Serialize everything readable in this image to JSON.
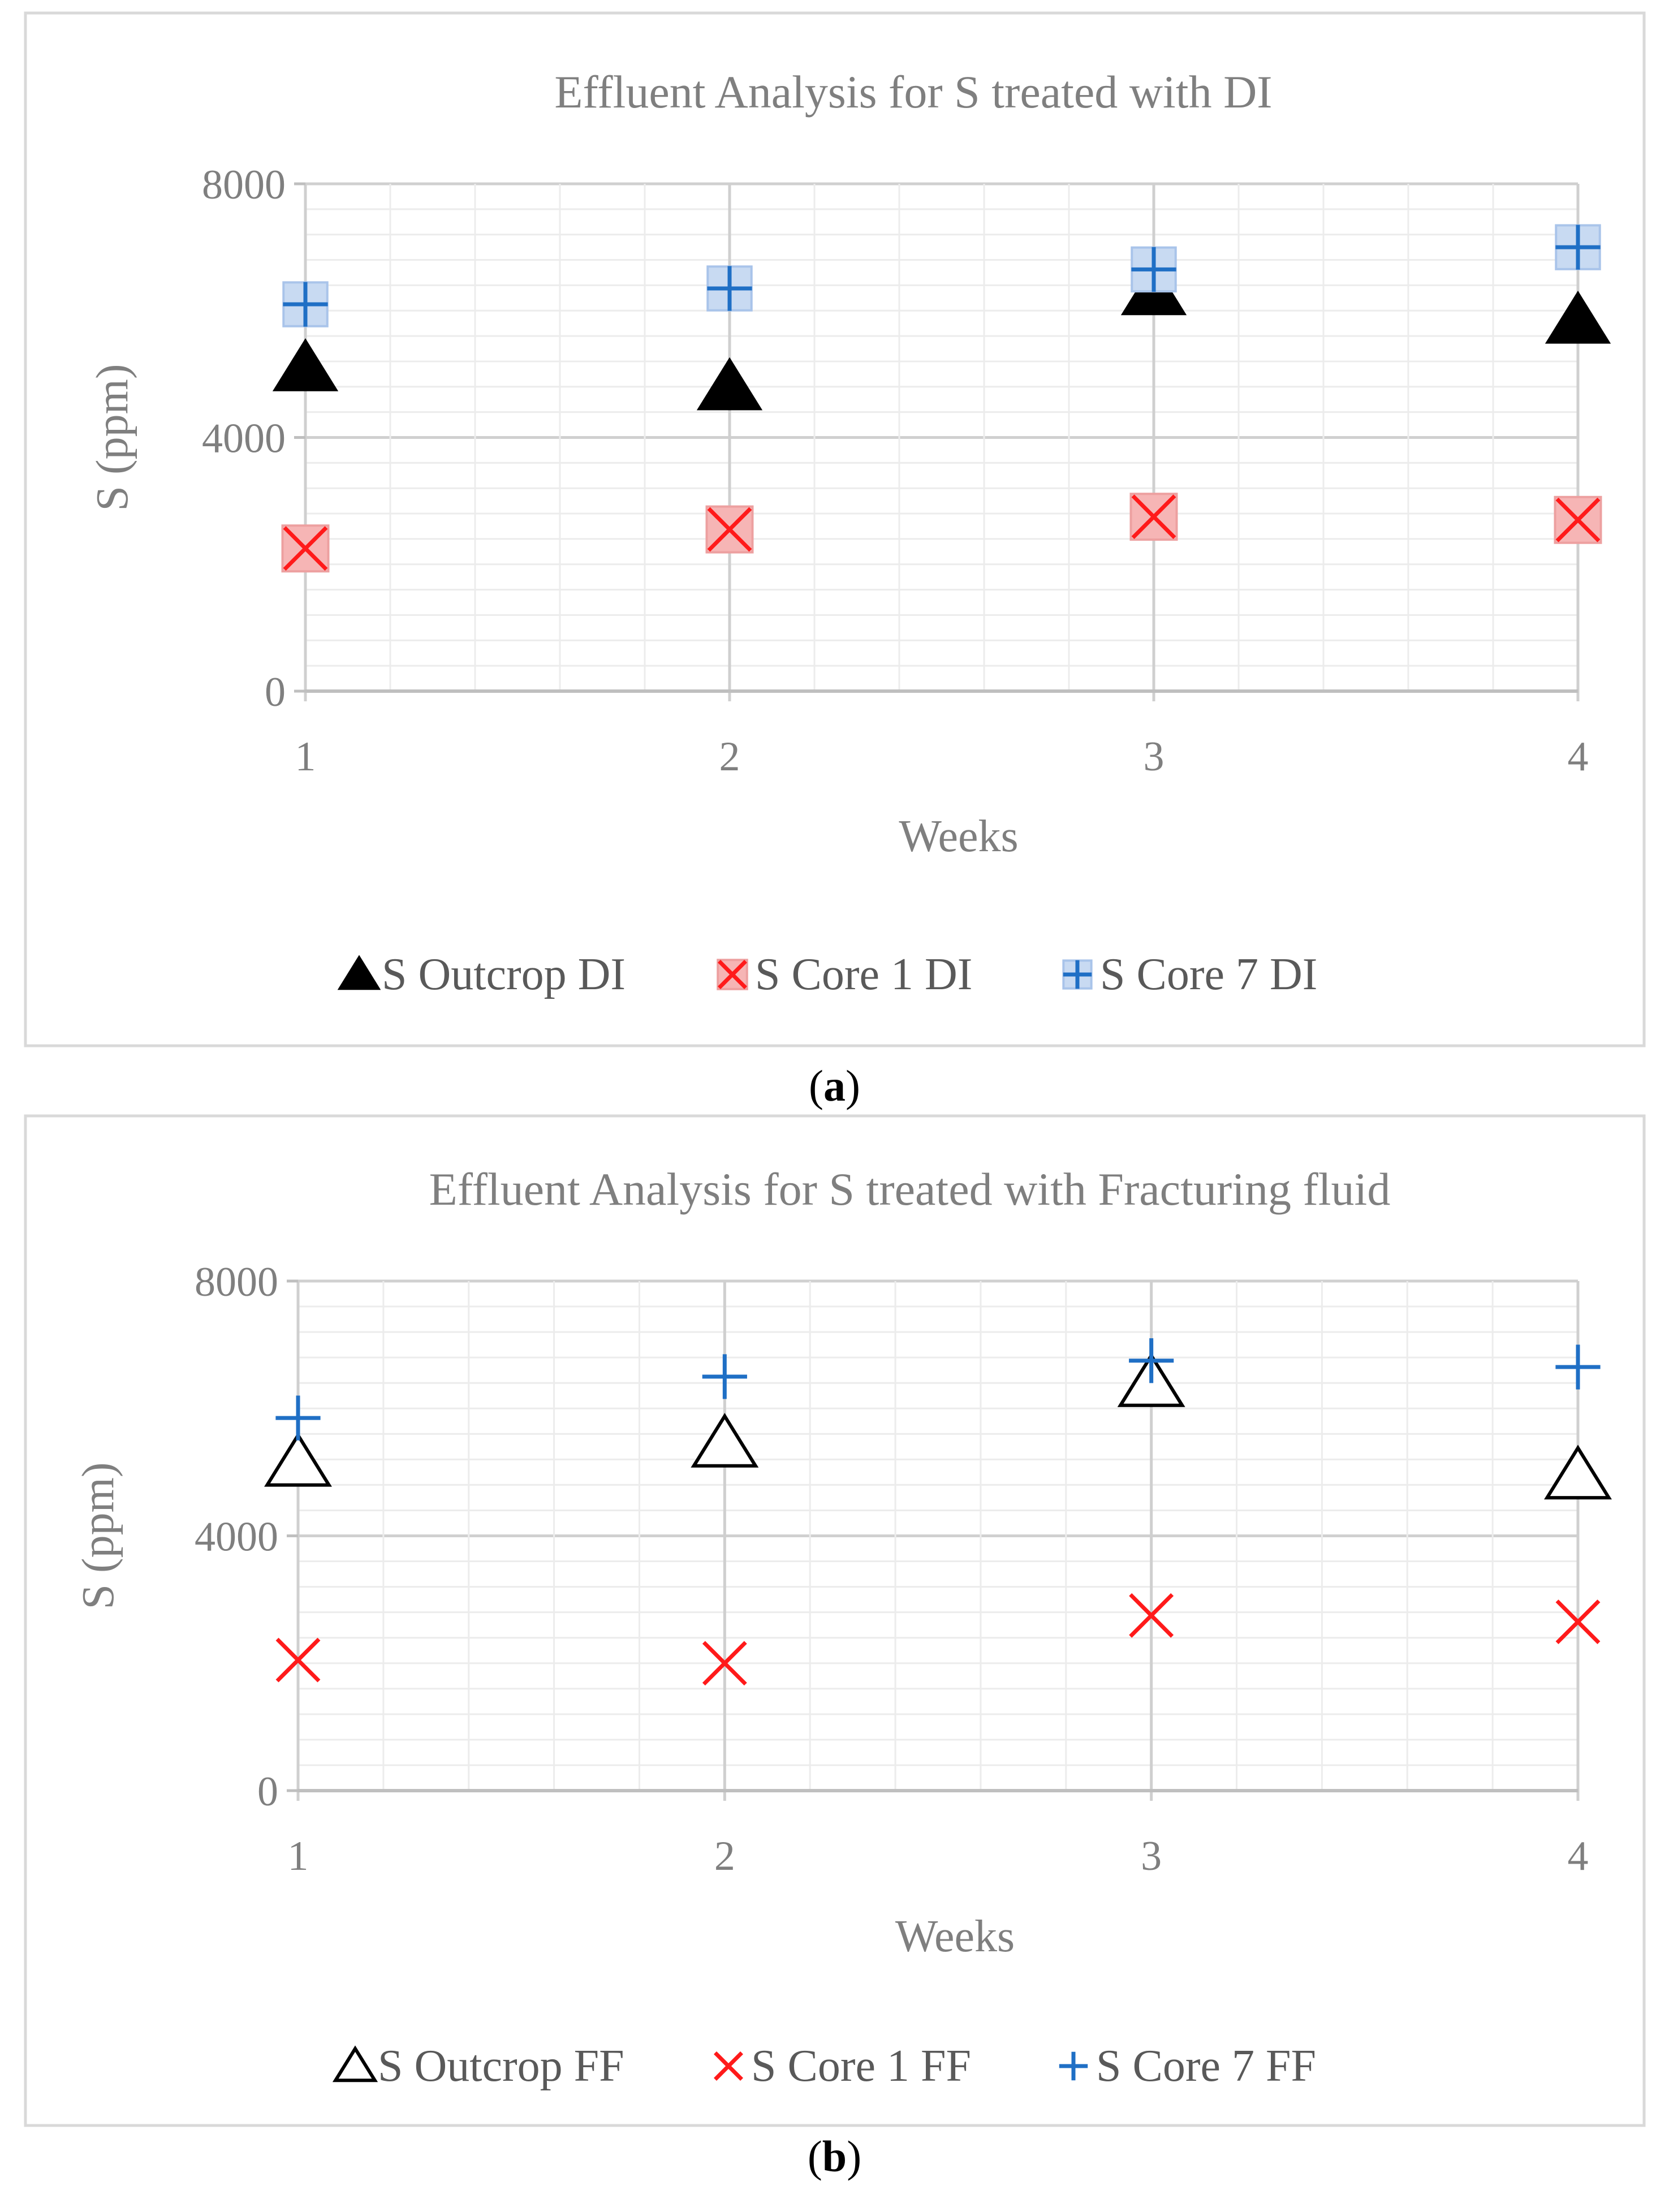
{
  "chart_data": [
    {
      "type": "scatter",
      "panel_label": "a",
      "title": "Effluent Analysis for S treated with DI",
      "xlabel": "Weeks",
      "ylabel": "S (ppm)",
      "x": [
        1,
        2,
        3,
        4
      ],
      "x_ticks": [
        "1",
        "2",
        "3",
        "4"
      ],
      "y_ticks": [
        "0",
        "4000",
        "8000"
      ],
      "ylim": [
        0,
        8000
      ],
      "grid": true,
      "legend_position": "bottom",
      "series": [
        {
          "name": "S Outcrop DI",
          "marker": "triangle-filled",
          "color": "#000000",
          "values": [
            5100,
            4800,
            6300,
            5850
          ]
        },
        {
          "name": "S Core 1 DI",
          "marker": "x-shaded",
          "color": "#ff1a1a",
          "values": [
            2250,
            2550,
            2750,
            2700
          ]
        },
        {
          "name": "S Core 7 DI",
          "marker": "plus-shaded",
          "color": "#1f6fc5",
          "values": [
            6100,
            6350,
            6650,
            7000
          ]
        }
      ]
    },
    {
      "type": "scatter",
      "panel_label": "b",
      "title": "Effluent Analysis for S treated with Fracturing fluid",
      "xlabel": "Weeks",
      "ylabel": "S (ppm)",
      "x": [
        1,
        2,
        3,
        4
      ],
      "x_ticks": [
        "1",
        "2",
        "3",
        "4"
      ],
      "y_ticks": [
        "0",
        "4000",
        "8000"
      ],
      "ylim": [
        0,
        8000
      ],
      "grid": true,
      "legend_position": "bottom",
      "series": [
        {
          "name": "S Outcrop FF",
          "marker": "triangle-open",
          "color": "#000000",
          "values": [
            5150,
            5450,
            6400,
            4950
          ]
        },
        {
          "name": "S Core 1 FF",
          "marker": "x",
          "color": "#ff1a1a",
          "values": [
            2050,
            2000,
            2750,
            2650
          ]
        },
        {
          "name": "S Core 7 FF",
          "marker": "plus",
          "color": "#1f6fc5",
          "values": [
            5850,
            6500,
            6750,
            6650
          ]
        }
      ]
    }
  ]
}
